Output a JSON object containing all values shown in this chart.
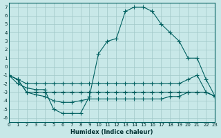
{
  "xlabel": "Humidex (Indice chaleur)",
  "xlim": [
    0,
    23
  ],
  "ylim": [
    -6.5,
    7.5
  ],
  "xticks": [
    0,
    1,
    2,
    3,
    4,
    5,
    6,
    7,
    8,
    9,
    10,
    11,
    12,
    13,
    14,
    15,
    16,
    17,
    18,
    19,
    20,
    21,
    22,
    23
  ],
  "yticks": [
    -6,
    -5,
    -4,
    -3,
    -2,
    -1,
    0,
    1,
    2,
    3,
    4,
    5,
    6,
    7
  ],
  "bg_color": "#c8e8e8",
  "line_color": "#006060",
  "line1_x": [
    0,
    1,
    2,
    3,
    4,
    5,
    6,
    7,
    8,
    9,
    10,
    11,
    12,
    13,
    14,
    15,
    16,
    17,
    18,
    19,
    20,
    21,
    22,
    23
  ],
  "line1_y": [
    -1,
    -2,
    -2.5,
    -2.7,
    -2.7,
    -5.0,
    -5.5,
    -5.5,
    -5.5,
    -3.5,
    1.5,
    3.0,
    3.3,
    6.5,
    7.0,
    7.0,
    6.5,
    5.0,
    4.0,
    3.0,
    1.0,
    1.0,
    -1.5,
    -3.5
  ],
  "line2_x": [
    0,
    1,
    2,
    3,
    4,
    5,
    6,
    7,
    8,
    9,
    10,
    11,
    12,
    13,
    14,
    15,
    16,
    17,
    18,
    19,
    20,
    21,
    22,
    23
  ],
  "line2_y": [
    -1.0,
    -1.5,
    -2.0,
    -2.0,
    -2.0,
    -2.0,
    -2.0,
    -2.0,
    -2.0,
    -2.0,
    -2.0,
    -2.0,
    -2.0,
    -2.0,
    -2.0,
    -2.0,
    -2.0,
    -2.0,
    -2.0,
    -2.0,
    -1.5,
    -1.0,
    -3.0,
    -3.5
  ],
  "line3_x": [
    0,
    1,
    2,
    3,
    4,
    5,
    6,
    7,
    8,
    9,
    10,
    11,
    12,
    13,
    14,
    15,
    16,
    17,
    18,
    19,
    20,
    21,
    22,
    23
  ],
  "line3_y": [
    -1.0,
    -1.5,
    -3.0,
    -3.0,
    -3.0,
    -3.0,
    -3.0,
    -3.0,
    -3.0,
    -3.0,
    -3.0,
    -3.0,
    -3.0,
    -3.0,
    -3.0,
    -3.0,
    -3.0,
    -3.0,
    -3.0,
    -3.0,
    -3.0,
    -3.0,
    -3.0,
    -3.5
  ],
  "line4_x": [
    0,
    1,
    2,
    3,
    4,
    5,
    6,
    7,
    8,
    9,
    10,
    11,
    12,
    13,
    14,
    15,
    16,
    17,
    18,
    19,
    20,
    21,
    22,
    23
  ],
  "line4_y": [
    -1.0,
    -1.5,
    -3.0,
    -3.3,
    -3.5,
    -4.0,
    -4.2,
    -4.2,
    -4.0,
    -3.8,
    -3.8,
    -3.8,
    -3.8,
    -3.8,
    -3.8,
    -3.8,
    -3.8,
    -3.8,
    -3.5,
    -3.5,
    -3.0,
    -3.0,
    -3.0,
    -3.5
  ]
}
